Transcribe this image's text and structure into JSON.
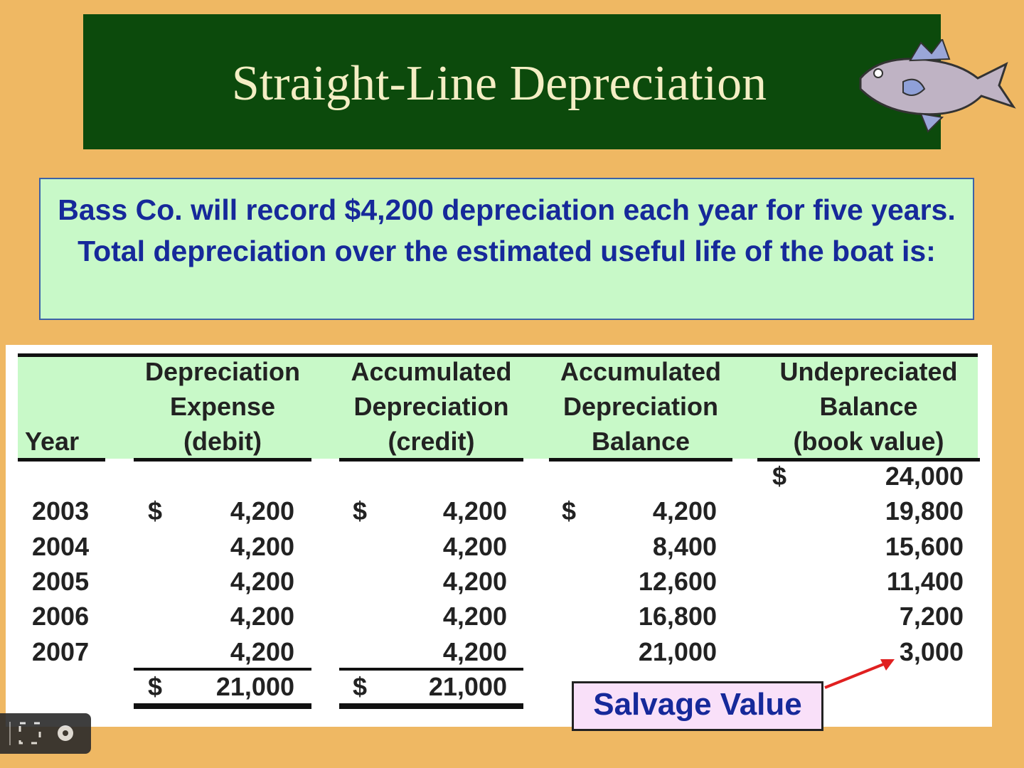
{
  "slide": {
    "title": "Straight-Line Depreciation",
    "intro": "Bass Co. will record $4,200 depreciation each year for five years.  Total depreciation over the estimated useful life of the boat is:"
  },
  "table": {
    "headers": [
      [
        "Year"
      ],
      [
        "Depreciation",
        "Expense",
        "(debit)"
      ],
      [
        "Accumulated",
        "Depreciation",
        "(credit)"
      ],
      [
        "Accumulated",
        "Depreciation",
        "Balance"
      ],
      [
        "Undepreciated",
        "Balance",
        "(book value)"
      ]
    ],
    "currency": "$",
    "opening_balance": "24,000",
    "rows": [
      [
        "2003",
        "4,200",
        "4,200",
        "4,200",
        "19,800"
      ],
      [
        "2004",
        "4,200",
        "4,200",
        "8,400",
        "15,600"
      ],
      [
        "2005",
        "4,200",
        "4,200",
        "12,600",
        "11,400"
      ],
      [
        "2006",
        "4,200",
        "4,200",
        "16,800",
        "7,200"
      ],
      [
        "2007",
        "4,200",
        "4,200",
        "21,000",
        "3,000"
      ]
    ],
    "totals": [
      "21,000",
      "21,000"
    ]
  },
  "callout": "Salvage Value"
}
